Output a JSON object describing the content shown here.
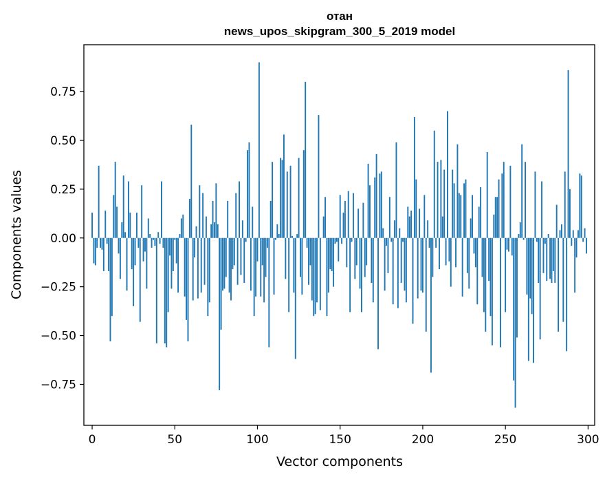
{
  "chart_data": {
    "type": "bar",
    "title": [
      "отан",
      "news_upos_skipgram_300_5_2019 model"
    ],
    "xlabel": "Vector components",
    "ylabel": "Components values",
    "xlim": [
      -5,
      304
    ],
    "ylim": [
      -0.96,
      0.99
    ],
    "xticks": [
      0,
      50,
      100,
      150,
      200,
      250,
      300
    ],
    "xtick_labels": [
      "0",
      "50",
      "100",
      "150",
      "200",
      "250",
      "300"
    ],
    "yticks": [
      -0.75,
      -0.5,
      -0.25,
      0.0,
      0.25,
      0.5,
      0.75
    ],
    "ytick_labels": [
      "−0.75",
      "−0.50",
      "−0.25",
      "0.00",
      "0.25",
      "0.50",
      "0.75"
    ],
    "bar_color": "#1f77b4",
    "grid": false,
    "legend": "none",
    "x": "0..299 (component index)",
    "values": [
      0.13,
      -0.13,
      -0.14,
      -0.05,
      0.37,
      -0.05,
      -0.06,
      -0.17,
      0.14,
      -0.03,
      -0.17,
      -0.53,
      -0.4,
      0.22,
      0.39,
      0.16,
      -0.08,
      -0.21,
      0.08,
      0.32,
      0.03,
      -0.27,
      0.29,
      0.13,
      -0.16,
      -0.35,
      -0.14,
      0.13,
      -0.05,
      -0.43,
      0.27,
      -0.12,
      -0.07,
      -0.26,
      0.1,
      0.02,
      -0.05,
      -0.01,
      -0.04,
      -0.54,
      0.03,
      -0.03,
      0.29,
      -0.05,
      -0.54,
      -0.56,
      -0.38,
      -0.09,
      -0.26,
      -0.17,
      -0.01,
      -0.13,
      -0.28,
      0.02,
      0.1,
      0.12,
      -0.3,
      -0.42,
      -0.53,
      0.2,
      0.58,
      -0.32,
      -0.1,
      0.06,
      -0.31,
      0.27,
      -0.28,
      0.23,
      -0.24,
      0.11,
      -0.4,
      -0.33,
      0.07,
      0.19,
      0.08,
      0.28,
      0.07,
      -0.78,
      -0.47,
      -0.27,
      -0.26,
      -0.2,
      0.19,
      -0.28,
      -0.32,
      -0.16,
      -0.14,
      0.23,
      -0.24,
      0.29,
      -0.19,
      0.09,
      -0.23,
      -0.02,
      0.45,
      0.49,
      -0.27,
      0.16,
      -0.4,
      -0.3,
      -0.12,
      0.9,
      -0.3,
      -0.14,
      -0.33,
      -0.2,
      -0.05,
      -0.56,
      0.19,
      0.39,
      -0.29,
      -0.01,
      0.07,
      0.02,
      0.41,
      0.4,
      0.53,
      -0.21,
      0.34,
      -0.38,
      0.37,
      0.01,
      -0.28,
      -0.62,
      0.02,
      0.41,
      -0.2,
      -0.29,
      0.45,
      0.8,
      -0.05,
      -0.24,
      -0.14,
      -0.32,
      -0.4,
      -0.39,
      -0.33,
      0.63,
      -0.37,
      0.0,
      0.11,
      0.21,
      -0.4,
      -0.28,
      -0.16,
      -0.17,
      -0.25,
      -0.03,
      -0.02,
      -0.12,
      0.22,
      -0.03,
      0.13,
      0.19,
      -0.15,
      0.24,
      -0.38,
      -0.02,
      0.23,
      -0.21,
      -0.14,
      0.15,
      -0.26,
      -0.38,
      0.18,
      -0.2,
      -0.14,
      0.38,
      0.27,
      -0.23,
      -0.33,
      0.31,
      0.43,
      -0.57,
      0.33,
      0.34,
      0.05,
      -0.27,
      -0.04,
      -0.18,
      0.21,
      -0.02,
      -0.34,
      0.09,
      0.49,
      -0.36,
      0.05,
      -0.23,
      -0.02,
      -0.27,
      -0.33,
      0.16,
      0.11,
      0.14,
      -0.44,
      0.62,
      0.3,
      -0.31,
      0.15,
      -0.27,
      -0.28,
      0.22,
      -0.48,
      0.09,
      -0.05,
      -0.69,
      -0.2,
      0.55,
      -0.05,
      0.39,
      -0.16,
      0.4,
      0.11,
      0.35,
      -0.14,
      0.65,
      -0.12,
      -0.25,
      0.35,
      0.28,
      -0.15,
      0.48,
      0.23,
      0.22,
      -0.3,
      0.28,
      0.3,
      -0.18,
      -0.26,
      0.1,
      0.22,
      -0.08,
      -0.15,
      -0.34,
      0.16,
      0.26,
      -0.2,
      -0.38,
      -0.48,
      0.44,
      -0.22,
      -0.4,
      -0.55,
      0.12,
      0.21,
      0.21,
      0.3,
      -0.56,
      0.33,
      0.39,
      -0.38,
      -0.06,
      -0.07,
      0.37,
      -0.09,
      -0.73,
      -0.87,
      -0.51,
      0.02,
      0.08,
      0.48,
      -0.01,
      0.39,
      -0.29,
      -0.63,
      -0.31,
      -0.39,
      -0.64,
      0.34,
      -0.02,
      -0.23,
      -0.52,
      0.29,
      -0.18,
      -0.03,
      -0.22,
      0.02,
      -0.21,
      -0.23,
      -0.17,
      -0.23,
      0.17,
      -0.48,
      0.04,
      0.07,
      -0.43,
      0.34,
      -0.58,
      0.86,
      0.25,
      -0.04,
      0.04,
      -0.28,
      -0.1,
      0.04,
      0.33,
      0.32,
      -0.02,
      0.05,
      -0.08
    ]
  }
}
